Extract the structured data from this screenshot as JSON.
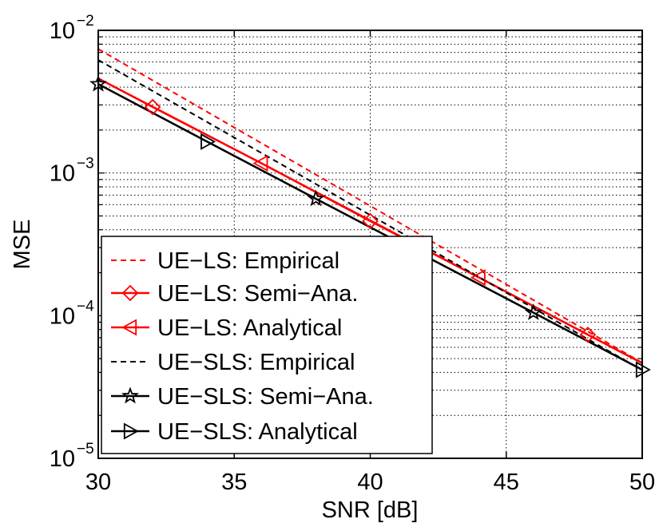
{
  "chart_data": {
    "type": "line",
    "xlabel": "SNR [dB]",
    "ylabel": "MSE",
    "xlim": [
      30,
      50
    ],
    "ylim": [
      1e-05,
      0.01
    ],
    "yscale": "log",
    "grid": true,
    "legend_position": "bottom-left",
    "x_ticks": [
      {
        "value": 30,
        "label": "30"
      },
      {
        "value": 35,
        "label": "35"
      },
      {
        "value": 40,
        "label": "40"
      },
      {
        "value": 45,
        "label": "45"
      },
      {
        "value": 50,
        "label": "50"
      }
    ],
    "y_ticks": [
      {
        "value": 1e-05,
        "base": "10",
        "exp": "−5"
      },
      {
        "value": 0.0001,
        "base": "10",
        "exp": "−4"
      },
      {
        "value": 0.001,
        "base": "10",
        "exp": "−3"
      },
      {
        "value": 0.01,
        "base": "10",
        "exp": "−2"
      }
    ],
    "series": [
      {
        "name": "UE−LS: Empirical",
        "color": "#ff0000",
        "dash": "dashed",
        "marker": "none",
        "x": [
          30,
          50
        ],
        "y": [
          0.0074,
          4.67e-05
        ]
      },
      {
        "name": "UE−LS: Semi−Ana.",
        "color": "#ff0000",
        "dash": "solid",
        "marker": "diamond",
        "x": [
          30,
          32,
          36,
          40,
          44,
          48,
          50
        ],
        "y": [
          0.0046,
          0.0029,
          0.00117,
          0.00046,
          0.000185,
          7.35e-05,
          4.65e-05
        ],
        "marker_x": [
          32,
          40,
          48
        ]
      },
      {
        "name": "UE−LS: Analytical",
        "color": "#ff0000",
        "dash": "solid",
        "marker": "triangle-left",
        "x": [
          30,
          36,
          44,
          50
        ],
        "y": [
          0.0046,
          0.00117,
          0.000185,
          4.65e-05
        ],
        "marker_x": [
          36,
          44
        ]
      },
      {
        "name": "UE−SLS: Empirical",
        "color": "#000000",
        "dash": "dashed",
        "marker": "none",
        "x": [
          30,
          50
        ],
        "y": [
          0.0062,
          4.15e-05
        ]
      },
      {
        "name": "UE−SLS: Semi−Ana.",
        "color": "#000000",
        "dash": "solid",
        "marker": "star",
        "x": [
          30,
          34,
          38,
          42,
          46,
          50
        ],
        "y": [
          0.0042,
          0.00166,
          0.00066,
          0.000263,
          0.000105,
          4.18e-05
        ],
        "marker_x": [
          30,
          38,
          46
        ]
      },
      {
        "name": "UE−SLS: Analytical",
        "color": "#000000",
        "dash": "solid",
        "marker": "triangle-right",
        "x": [
          30,
          34,
          38,
          42,
          46,
          50
        ],
        "y": [
          0.0042,
          0.00166,
          0.00066,
          0.000263,
          0.000105,
          4.18e-05
        ],
        "marker_x": [
          34,
          42,
          50
        ]
      }
    ]
  }
}
